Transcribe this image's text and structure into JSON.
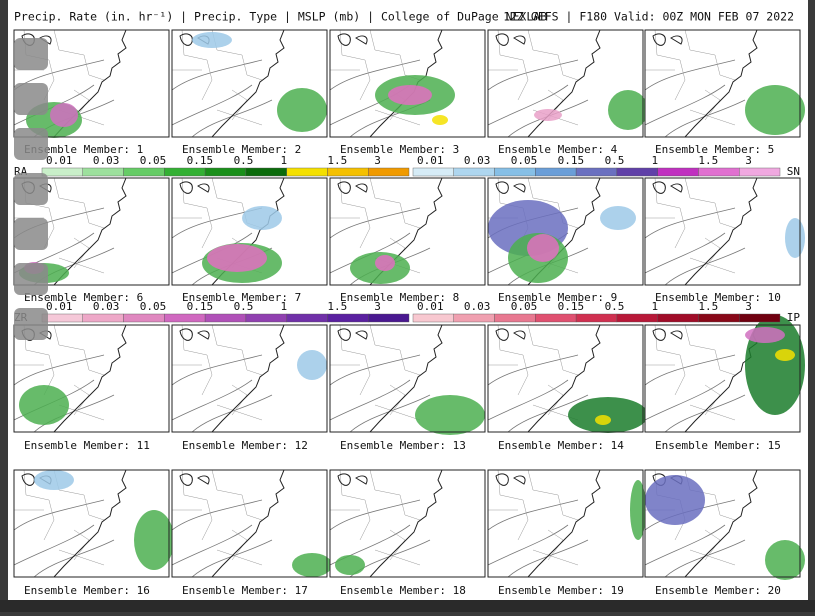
{
  "header": {
    "title": "Precip. Rate (in. hr⁻¹) | Precip. Type | MSLP (mb) | College of DuPage NEXLAB",
    "run": "12Z GEFS | F180 Valid: 00Z MON FEB 07 2022"
  },
  "panels": [
    "Ensemble Member: 1",
    "Ensemble Member: 2",
    "Ensemble Member: 3",
    "Ensemble Member: 4",
    "Ensemble Member: 5",
    "Ensemble Member: 6",
    "Ensemble Member: 7",
    "Ensemble Member: 8",
    "Ensemble Member: 9",
    "Ensemble Member: 10",
    "Ensemble Member: 11",
    "Ensemble Member: 12",
    "Ensemble Member: 13",
    "Ensemble Member: 14",
    "Ensemble Member: 15",
    "Ensemble Member: 16",
    "Ensemble Member: 17",
    "Ensemble Member: 18",
    "Ensemble Member: 19",
    "Ensemble Member: 20"
  ],
  "legends": [
    {
      "label": "RA",
      "ticks": [
        "0.01",
        "0.03",
        "0.05",
        "0.15",
        "0.5",
        "1",
        "1.5",
        "3"
      ]
    },
    {
      "label": "SN",
      "ticks": [
        "0.01",
        "0.03",
        "0.05",
        "0.15",
        "0.5",
        "1",
        "1.5",
        "3"
      ]
    },
    {
      "label": "ZR",
      "ticks": [
        "0.01",
        "0.03",
        "0.05",
        "0.15",
        "0.5",
        "1",
        "1.5",
        "3"
      ]
    },
    {
      "label": "IP",
      "ticks": [
        "0.01",
        "0.03",
        "0.05",
        "0.15",
        "0.5",
        "1",
        "1.5",
        "3"
      ]
    }
  ]
}
